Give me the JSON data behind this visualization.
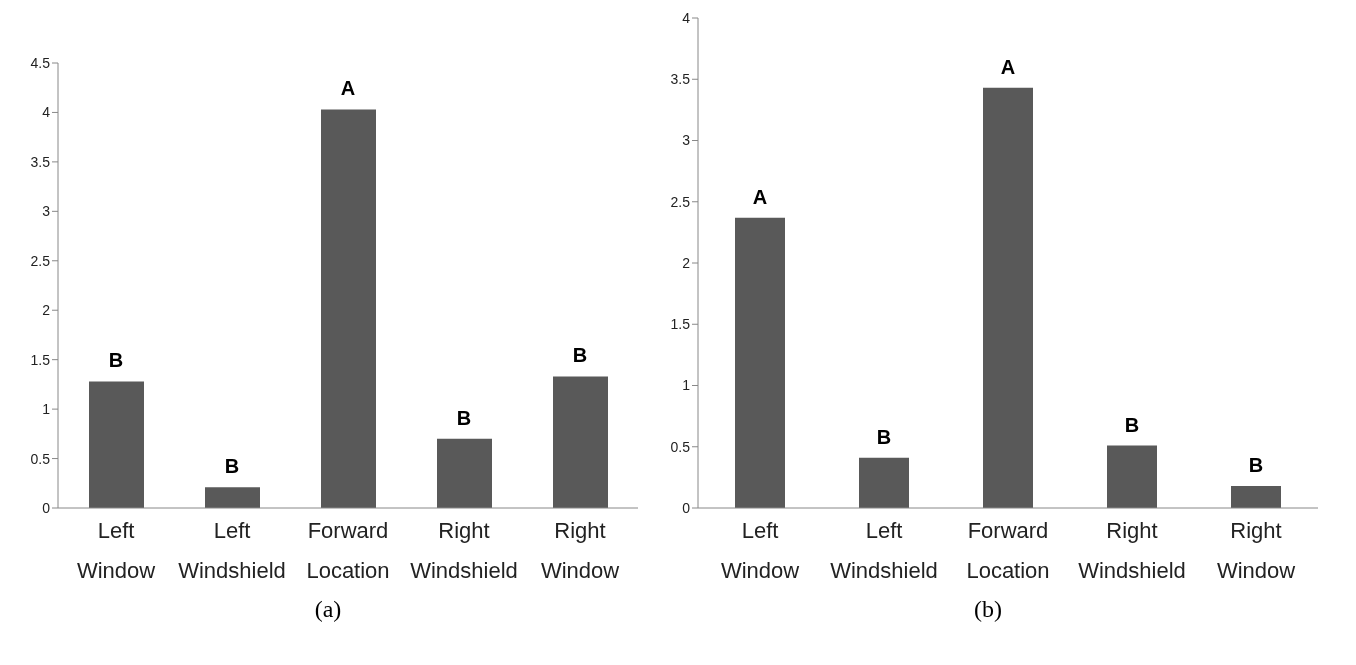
{
  "chart_data": [
    {
      "type": "bar",
      "categories": [
        "Left Window",
        "Left Windshield",
        "Forward Location",
        "Right Windshield",
        "Right Window"
      ],
      "values": [
        1.28,
        0.21,
        4.03,
        0.7,
        1.33
      ],
      "color": "#595959",
      "ylim": [
        0,
        4.5
      ],
      "yticks": [
        0,
        0.5,
        1,
        1.5,
        2,
        2.5,
        3,
        3.5,
        4,
        4.5
      ],
      "grid": false,
      "legend": false,
      "annotations": [
        {
          "text": "B",
          "x": "Left Window",
          "y": 1.28
        },
        {
          "text": "B",
          "x": "Left Windshield",
          "y": 0.21
        },
        {
          "text": "A",
          "x": "Forward Location",
          "y": 4.03
        },
        {
          "text": "B",
          "x": "Right Windshield",
          "y": 0.7
        },
        {
          "text": "B",
          "x": "Right Window",
          "y": 1.33
        },
        "(a)"
      ]
    },
    {
      "type": "bar",
      "categories": [
        "Left Window",
        "Left Windshield",
        "Forward Location",
        "Right Windshield",
        "Right Window"
      ],
      "values": [
        2.37,
        0.41,
        3.43,
        0.51,
        0.18
      ],
      "color": "#595959",
      "ylim": [
        0,
        4
      ],
      "yticks": [
        0,
        0.5,
        1,
        1.5,
        2,
        2.5,
        3,
        3.5,
        4
      ],
      "grid": false,
      "legend": false,
      "annotations": [
        {
          "text": "A",
          "x": "Left Window",
          "y": 2.37
        },
        {
          "text": "B",
          "x": "Left Windshield",
          "y": 0.41
        },
        {
          "text": "A",
          "x": "Forward Location",
          "y": 3.43
        },
        {
          "text": "B",
          "x": "Right Windshield",
          "y": 0.51
        },
        {
          "text": "B",
          "x": "Right Window",
          "y": 0.18
        },
        "(b)"
      ]
    }
  ]
}
